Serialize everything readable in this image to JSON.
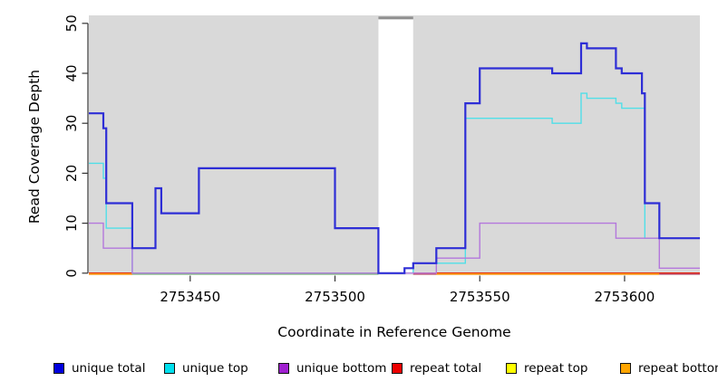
{
  "figure": {
    "ylabel": "Read Coverage Depth",
    "xlabel": "Coordinate in Reference Genome"
  },
  "legend": [
    {
      "label": "unique total",
      "swatch": "#0000dd"
    },
    {
      "label": "unique top",
      "swatch": "#00e0ee"
    },
    {
      "label": "unique bottom",
      "swatch": "#a020d0"
    },
    {
      "label": "repeat total",
      "swatch": "#ee0000"
    },
    {
      "label": "repeat top",
      "swatch": "#ffff00"
    },
    {
      "label": "repeat bottom",
      "swatch": "#ffa500"
    }
  ],
  "chart_data": {
    "type": "line",
    "subtype": "step-coverage",
    "xlabel": "Coordinate in Reference Genome",
    "ylabel": "Read Coverage Depth",
    "xlim": [
      2753415,
      2753626
    ],
    "ylim": [
      0,
      50
    ],
    "x_ticks": [
      2753450,
      2753500,
      2753550,
      2753600
    ],
    "y_ticks": [
      0,
      10,
      20,
      30,
      40,
      50
    ],
    "grid": false,
    "plot_bg": "#d9d9d9",
    "masked_region": {
      "from": 2753515,
      "to": 2753527,
      "fill": "#ffffff",
      "cap_color": "#8f8f8f"
    },
    "series": [
      {
        "name": "unique total",
        "color": "#2e2ed6",
        "width": 2.2,
        "points": [
          [
            2753415,
            32
          ],
          [
            2753420,
            29
          ],
          [
            2753421,
            14
          ],
          [
            2753430,
            5
          ],
          [
            2753438,
            17
          ],
          [
            2753440,
            12
          ],
          [
            2753453,
            21
          ],
          [
            2753500,
            9
          ],
          [
            2753515,
            0
          ],
          [
            2753524,
            1
          ],
          [
            2753527,
            2
          ],
          [
            2753535,
            5
          ],
          [
            2753545,
            34
          ],
          [
            2753550,
            41
          ],
          [
            2753575,
            40
          ],
          [
            2753585,
            46
          ],
          [
            2753587,
            45
          ],
          [
            2753597,
            41
          ],
          [
            2753599,
            40
          ],
          [
            2753606,
            36
          ],
          [
            2753607,
            14
          ],
          [
            2753612,
            7
          ]
        ]
      },
      {
        "name": "unique top",
        "color": "#50dfe8",
        "width": 1.4,
        "points": [
          [
            2753415,
            22
          ],
          [
            2753420,
            19
          ],
          [
            2753421,
            9
          ],
          [
            2753430,
            0
          ],
          [
            2753527,
            2
          ],
          [
            2753545,
            31
          ],
          [
            2753575,
            30
          ],
          [
            2753585,
            36
          ],
          [
            2753587,
            35
          ],
          [
            2753597,
            34
          ],
          [
            2753599,
            33
          ],
          [
            2753607,
            7
          ]
        ]
      },
      {
        "name": "unique bottom",
        "color": "#b478dc",
        "width": 1.4,
        "points": [
          [
            2753415,
            10
          ],
          [
            2753420,
            5
          ],
          [
            2753430,
            0
          ],
          [
            2753535,
            3
          ],
          [
            2753550,
            10
          ],
          [
            2753597,
            7
          ],
          [
            2753612,
            1
          ]
        ]
      },
      {
        "name": "repeat total",
        "color": "#dd0000",
        "width": 1.4,
        "points": [
          [
            2753415,
            0
          ]
        ]
      },
      {
        "name": "repeat top",
        "color": "#ffff00",
        "width": 1.4,
        "points": [
          [
            2753415,
            0
          ]
        ]
      },
      {
        "name": "repeat bottom",
        "color": "#ff9d1e",
        "width": 1.8,
        "points": [
          [
            2753415,
            0
          ]
        ]
      }
    ],
    "baseline_visible_segments": [
      {
        "color_name": "orange",
        "color": "#ff9d1e",
        "from": 2753415,
        "to": 2753430
      },
      {
        "color_name": "green",
        "color": "#7cc87c",
        "from": 2753430,
        "to": 2753515
      },
      {
        "color_name": "crimson",
        "color": "#c84a64",
        "from": 2753527,
        "to": 2753535
      },
      {
        "color_name": "orange",
        "color": "#ff9d1e",
        "from": 2753535,
        "to": 2753612
      },
      {
        "color_name": "crimson",
        "color": "#c84a64",
        "from": 2753612,
        "to": 2753626
      }
    ]
  }
}
